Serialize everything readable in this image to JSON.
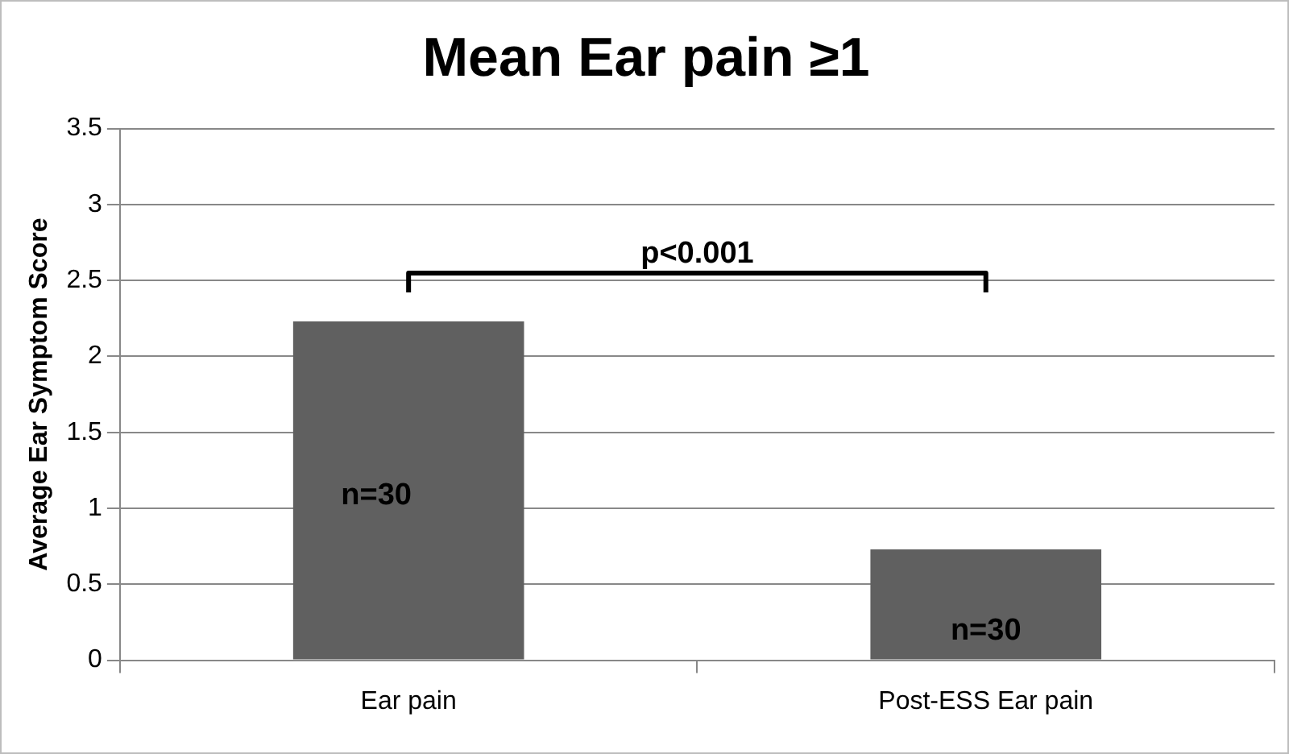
{
  "chart_data": {
    "type": "bar",
    "title": "Mean Ear pain ≥1",
    "ylabel": "Average Ear Symptom Score",
    "categories": [
      "Ear pain",
      "Post-ESS Ear pain"
    ],
    "values": [
      2.23,
      0.73
    ],
    "color": "#606060",
    "ylim": [
      0,
      3.5
    ],
    "yticks": [
      0,
      0.5,
      1,
      1.5,
      2,
      2.5,
      3,
      3.5
    ],
    "grid": "y",
    "legend": false,
    "annotations": [
      "p<0.001",
      "n=30",
      "n=30"
    ]
  }
}
